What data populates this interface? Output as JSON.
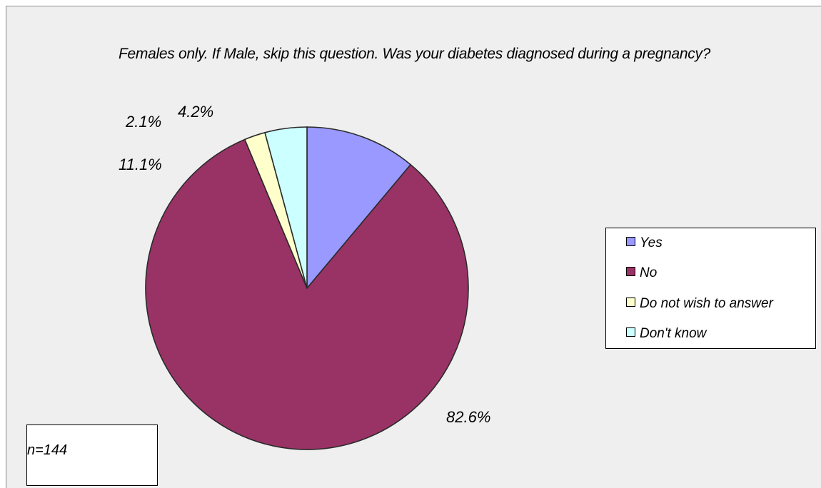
{
  "chart_data": {
    "type": "pie",
    "title": "Females only.  If Male, skip this question. Was your diabetes diagnosed during a pregnancy?",
    "categories": [
      "Yes",
      "No",
      "Do not wish to answer",
      "Don't know"
    ],
    "values": [
      11.1,
      82.6,
      2.1,
      4.2
    ],
    "labels": [
      "11.1%",
      "82.6%",
      "2.1%",
      "4.2%"
    ],
    "colors": [
      "#9999ff",
      "#993366",
      "#ffffcc",
      "#ccffff"
    ],
    "legend_position": "right",
    "annotation": "n=144"
  }
}
